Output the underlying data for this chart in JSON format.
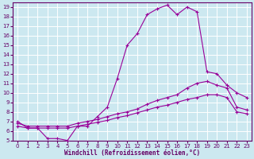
{
  "xlabel": "Windchill (Refroidissement éolien,°C)",
  "bg_color": "#cce8f0",
  "line_color": "#990099",
  "grid_color": "#ffffff",
  "xlim": [
    -0.5,
    23.5
  ],
  "ylim": [
    5,
    19.5
  ],
  "xticks": [
    0,
    1,
    2,
    3,
    4,
    5,
    6,
    7,
    8,
    9,
    10,
    11,
    12,
    13,
    14,
    15,
    16,
    17,
    18,
    19,
    20,
    21,
    22,
    23
  ],
  "yticks": [
    5,
    6,
    7,
    8,
    9,
    10,
    11,
    12,
    13,
    14,
    15,
    16,
    17,
    18,
    19
  ],
  "line1_x": [
    0,
    1,
    2,
    3,
    4,
    5,
    6,
    7,
    8,
    9,
    10,
    11,
    12,
    13,
    14,
    15,
    16,
    17,
    18,
    19,
    20,
    21,
    22,
    23
  ],
  "line1_y": [
    7.0,
    6.3,
    6.3,
    5.2,
    5.2,
    5.0,
    6.5,
    6.5,
    7.5,
    8.5,
    11.5,
    15.0,
    16.2,
    18.2,
    18.8,
    19.2,
    18.2,
    19.0,
    18.5,
    12.2,
    12.0,
    10.8,
    10.0,
    9.5
  ],
  "line2_x": [
    0,
    1,
    2,
    3,
    4,
    5,
    6,
    7,
    8,
    9,
    10,
    11,
    12,
    13,
    14,
    15,
    16,
    17,
    18,
    19,
    20,
    21,
    22,
    23
  ],
  "line2_y": [
    6.8,
    6.5,
    6.5,
    6.5,
    6.5,
    6.5,
    6.8,
    7.0,
    7.2,
    7.5,
    7.8,
    8.0,
    8.3,
    8.8,
    9.2,
    9.5,
    9.8,
    10.5,
    11.0,
    11.2,
    10.8,
    10.5,
    8.5,
    8.2
  ],
  "line3_x": [
    0,
    1,
    2,
    3,
    4,
    5,
    6,
    7,
    8,
    9,
    10,
    11,
    12,
    13,
    14,
    15,
    16,
    17,
    18,
    19,
    20,
    21,
    22,
    23
  ],
  "line3_y": [
    6.5,
    6.3,
    6.3,
    6.3,
    6.3,
    6.3,
    6.5,
    6.7,
    6.9,
    7.1,
    7.4,
    7.6,
    7.9,
    8.2,
    8.5,
    8.7,
    9.0,
    9.3,
    9.5,
    9.8,
    9.8,
    9.5,
    8.0,
    7.8
  ],
  "tick_labelsize": 5,
  "xlabel_fontsize": 5.5
}
